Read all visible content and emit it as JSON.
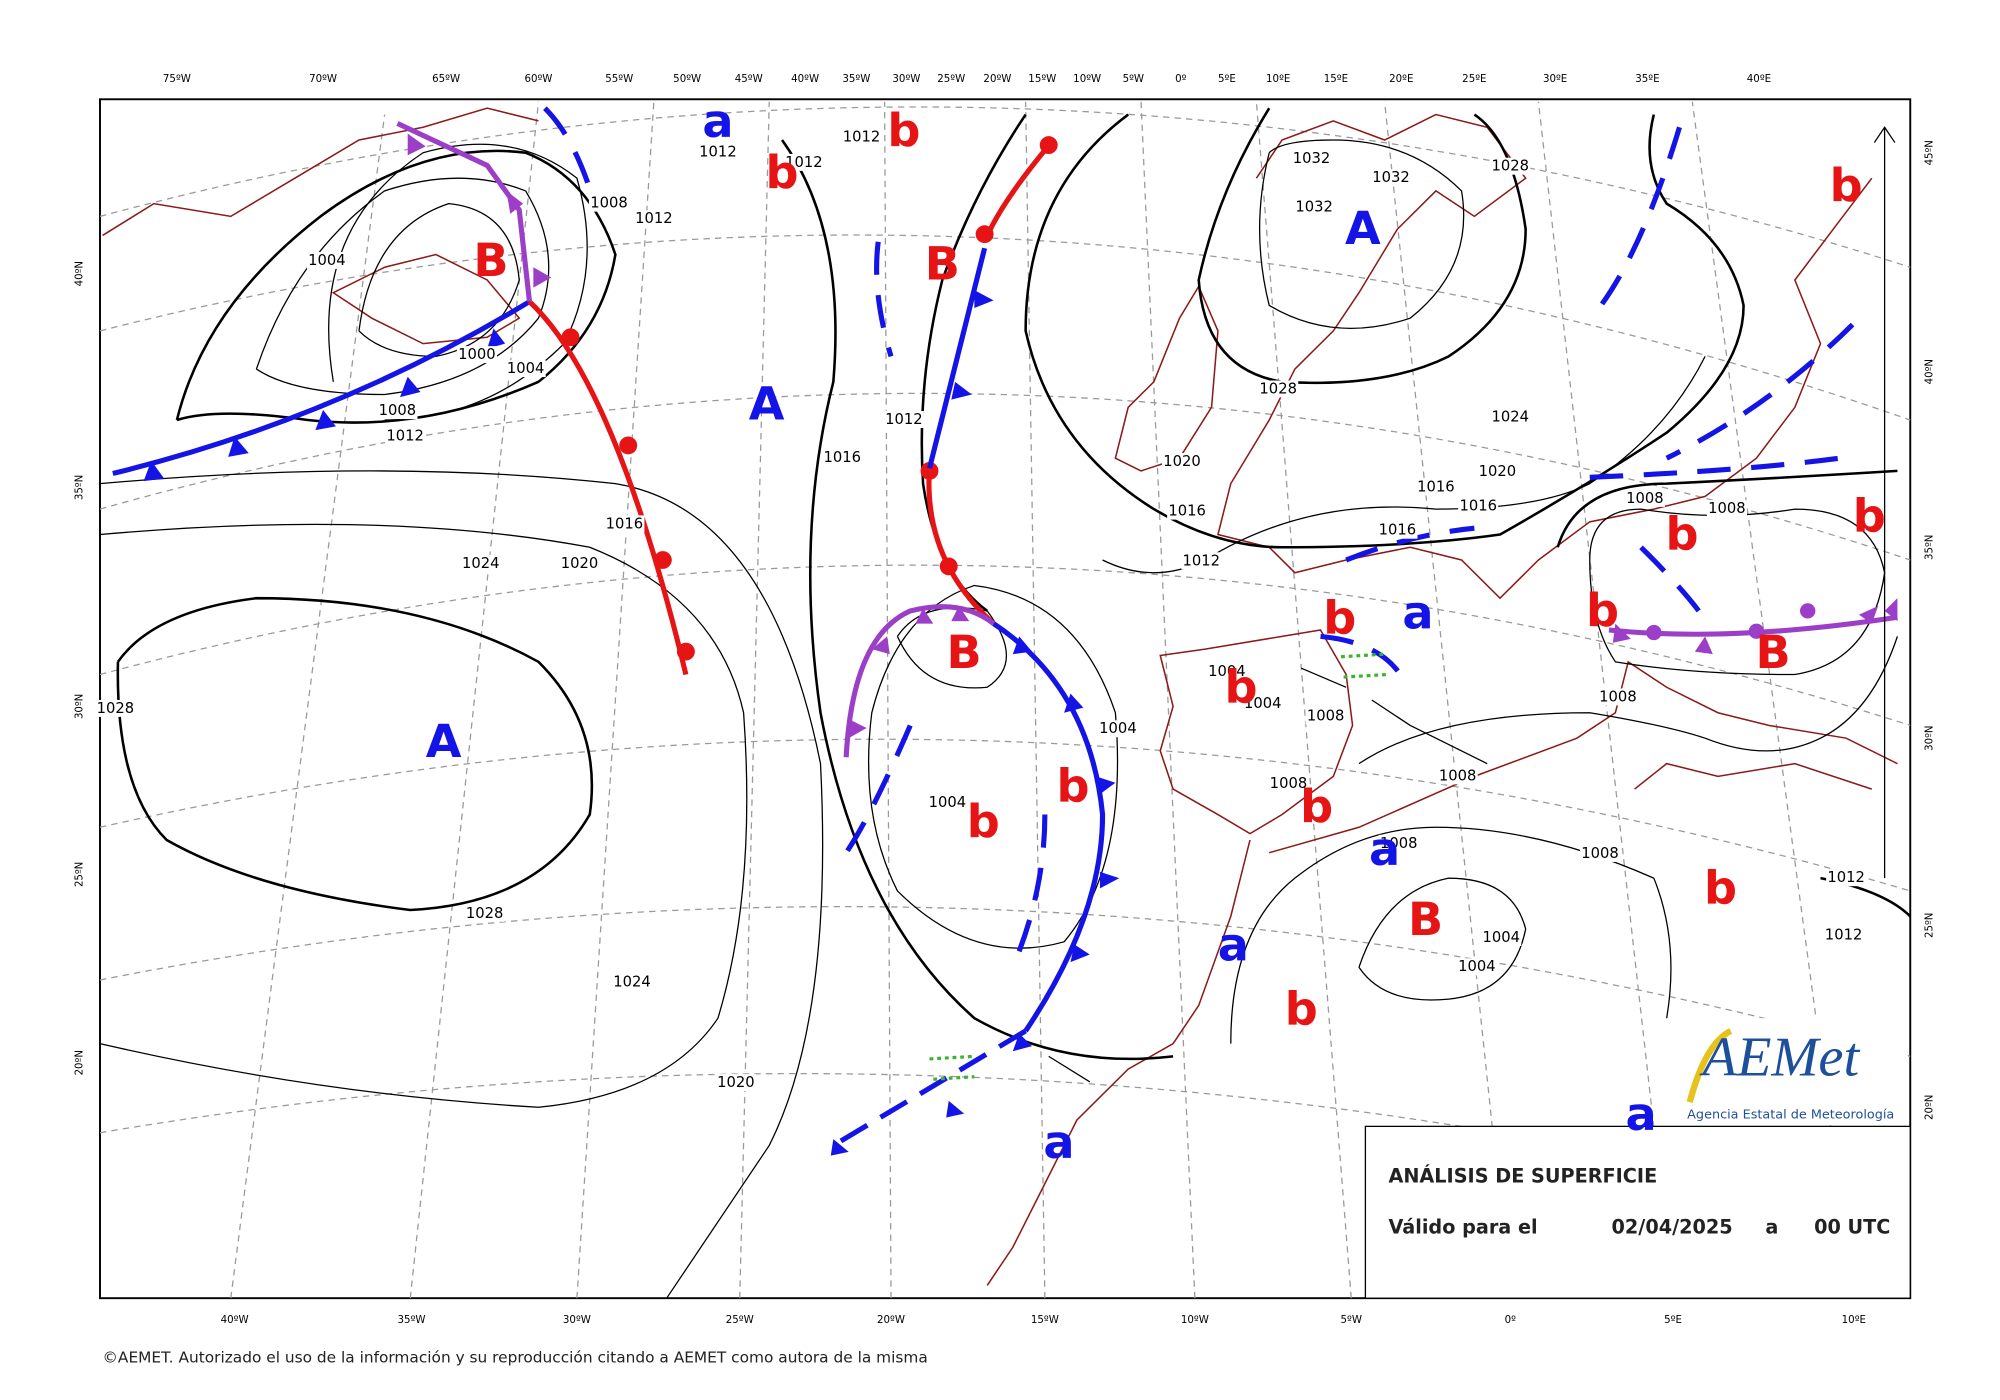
{
  "top_longitudes": [
    "75ºW",
    "70ºW",
    "65ºW",
    "60ºW",
    "55ºW",
    "50ºW",
    "45ºW",
    "40ºW",
    "35ºW",
    "30ºW",
    "25ºW",
    "20ºW",
    "15ºW",
    "10ºW",
    "5ºW",
    "0º",
    "5ºE",
    "10ºE",
    "15ºE",
    "20ºE",
    "25ºE",
    "30ºE",
    "35ºE",
    "40ºE"
  ],
  "bottom_longitudes": [
    "40ºW",
    "35ºW",
    "30ºW",
    "25ºW",
    "20ºW",
    "15ºW",
    "10ºW",
    "5ºW",
    "0º",
    "5ºE",
    "10ºE"
  ],
  "left_latitudes": [
    "40ºN",
    "35ºN",
    "30ºN",
    "25ºN",
    "20ºN"
  ],
  "right_latitudes": [
    "45ºN",
    "40ºN",
    "35ºN",
    "30ºN",
    "25ºN",
    "20ºN"
  ],
  "pressure_centers": [
    "B",
    "B",
    "B",
    "B",
    "B",
    "A",
    "A",
    "A",
    "b",
    "b",
    "b",
    "b",
    "b",
    "b",
    "b",
    "b",
    "b",
    "b",
    "b",
    "b",
    "b",
    "a",
    "a",
    "a",
    "a",
    "a",
    "a"
  ],
  "isobar_labels": [
    1012,
    1012,
    1012,
    1012,
    1012,
    1012,
    1012,
    1012,
    1012,
    1008,
    1008,
    1008,
    1008,
    1008,
    1008,
    1008,
    1008,
    1008,
    1008,
    1004,
    1004,
    1004,
    1004,
    1004,
    1004,
    1004,
    1004,
    1000,
    1016,
    1016,
    1016,
    1016,
    1016,
    1016,
    1020,
    1020,
    1020,
    1020,
    1024,
    1024,
    1024,
    1028,
    1028,
    1028,
    1028,
    1032,
    1032,
    1032
  ],
  "info_box": {
    "title": "ANÁLISIS DE SUPERFICIE",
    "valid_label": "Válido para el",
    "date": "02/04/2025",
    "connector": "a",
    "time": "00 UTC"
  },
  "logo": {
    "name": "AEMet",
    "subtitle": "Agencia Estatal de Meteorología"
  },
  "copyright": "©AEMET. Autorizado el uso de la información y su reproducción citando a AEMET como autora de la misma"
}
